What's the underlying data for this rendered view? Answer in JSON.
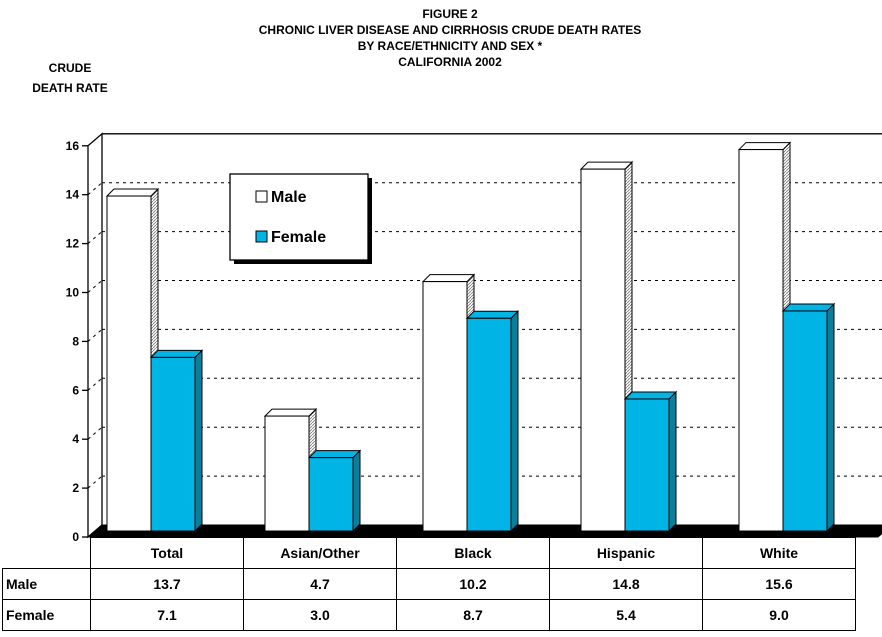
{
  "title_lines": [
    "FIGURE 2",
    "CHRONIC LIVER DISEASE AND CIRRHOSIS CRUDE DEATH RATES",
    "BY RACE/ETHNICITY AND SEX *",
    "CALIFORNIA 2002"
  ],
  "y_axis_label_lines": [
    "CRUDE",
    "DEATH RATE"
  ],
  "colors": {
    "male": "#ffffff",
    "female": "#00b4e6",
    "female_side": "#0a7f9c",
    "floor": "#000000"
  },
  "chart_data": {
    "type": "bar",
    "categories": [
      "Total",
      "Asian/Other",
      "Black",
      "Hispanic",
      "White"
    ],
    "series": [
      {
        "name": "Male",
        "values": [
          13.7,
          4.7,
          10.2,
          14.8,
          15.6
        ]
      },
      {
        "name": "Female",
        "values": [
          7.1,
          3.0,
          8.7,
          5.4,
          9.0
        ]
      }
    ],
    "y_ticks": [
      "0",
      "2",
      "4",
      "6",
      "8",
      "10",
      "12",
      "14",
      "16"
    ],
    "ylim": [
      0,
      16
    ],
    "grid": true,
    "legend_position": "top-left"
  },
  "table": {
    "rows": [
      {
        "label": "Male",
        "values": [
          "13.7",
          "4.7",
          "10.2",
          "14.8",
          "15.6"
        ]
      },
      {
        "label": "Female",
        "values": [
          "7.1",
          "3.0",
          "8.7",
          "5.4",
          "9.0"
        ]
      }
    ]
  }
}
